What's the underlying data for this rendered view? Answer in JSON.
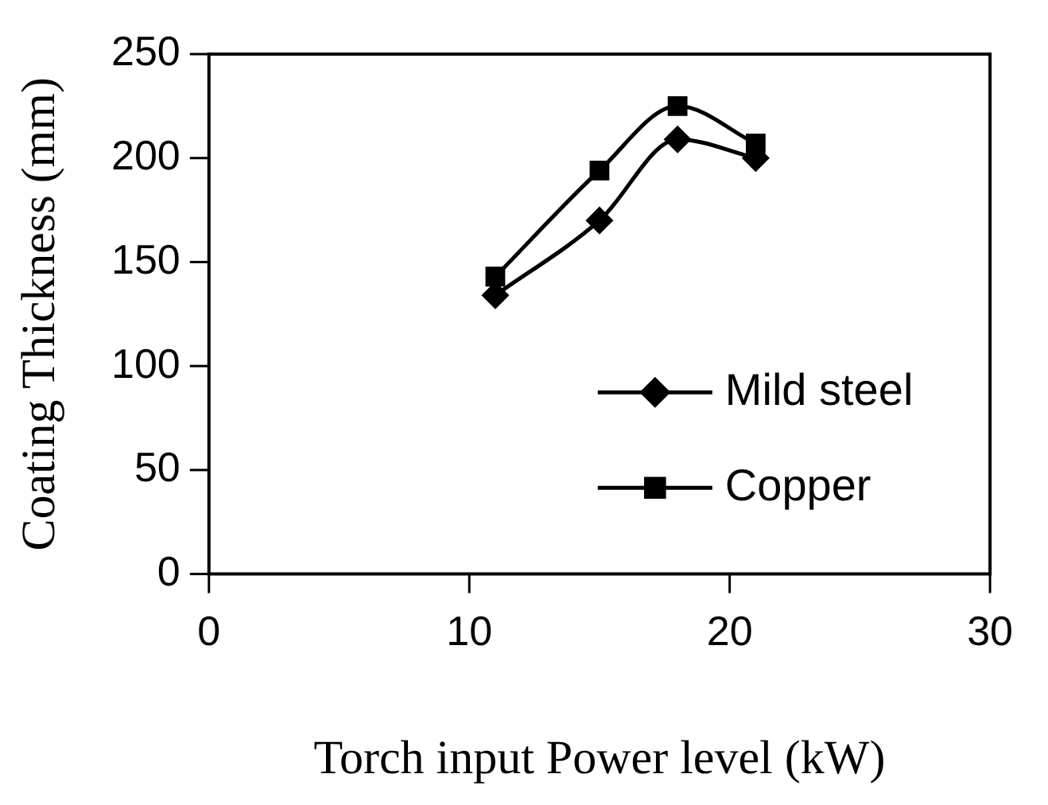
{
  "chart_data": {
    "type": "line",
    "xlabel": "Torch input Power level (kW)",
    "ylabel": "Coating Thickness (mm)",
    "xlim": [
      0,
      30
    ],
    "xticks": [
      0,
      10,
      20,
      30
    ],
    "ylim": [
      0,
      250
    ],
    "yticks": [
      0,
      50,
      100,
      150,
      200,
      250
    ],
    "grid": false,
    "legend": "bottom right",
    "series": [
      {
        "name": "Mild steel",
        "color": "#000000",
        "marker": "diamond",
        "x": [
          11,
          15,
          18,
          21
        ],
        "values": [
          134,
          170,
          209,
          200
        ]
      },
      {
        "name": "Copper",
        "color": "#000000",
        "marker": "square",
        "x": [
          11,
          15,
          18,
          21
        ],
        "values": [
          143,
          194,
          225,
          207
        ]
      }
    ]
  }
}
